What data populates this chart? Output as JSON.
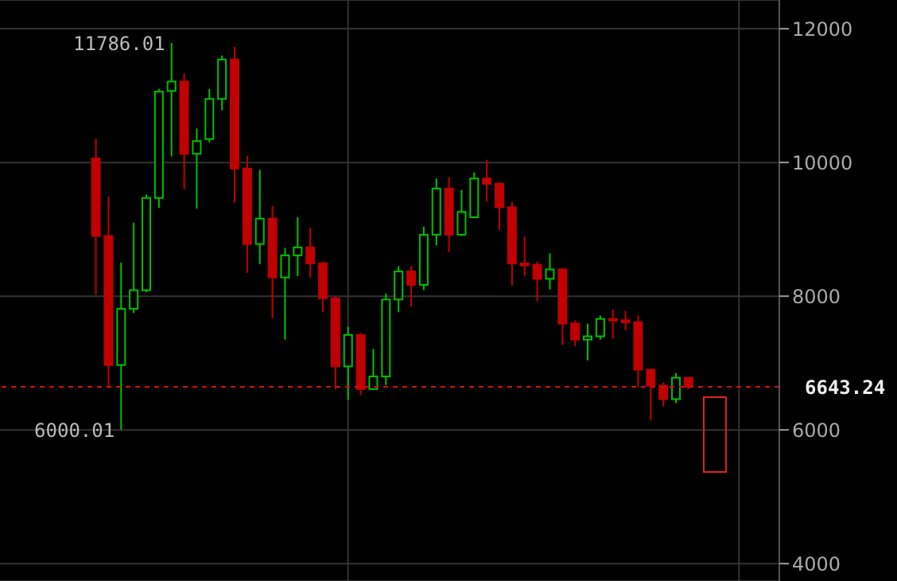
{
  "chart_data": {
    "type": "candlestick",
    "categories": [
      null,
      null,
      null,
      null,
      null,
      null,
      null,
      null,
      null,
      null,
      null,
      null,
      null,
      null,
      null,
      null,
      null,
      null,
      null,
      null,
      null,
      null,
      null,
      null,
      null,
      null,
      null,
      null,
      null,
      null,
      null,
      null,
      null,
      null,
      null,
      null,
      null,
      null,
      null,
      null,
      null,
      null,
      null,
      null,
      null,
      null,
      null,
      null
    ],
    "ohlc": [
      [
        10060,
        10350,
        8020,
        8900
      ],
      [
        8900,
        9490,
        6650,
        6970
      ],
      [
        6970,
        8500,
        6000.01,
        7810
      ],
      [
        7810,
        9100,
        7750,
        8090
      ],
      [
        8090,
        9520,
        8060,
        9470
      ],
      [
        9470,
        11100,
        9320,
        11060
      ],
      [
        11070,
        11786.01,
        10090,
        11210
      ],
      [
        11210,
        11330,
        9600,
        10130
      ],
      [
        10130,
        10510,
        9310,
        10320
      ],
      [
        10350,
        11100,
        10300,
        10950
      ],
      [
        10950,
        11600,
        10780,
        11540
      ],
      [
        11540,
        11730,
        9400,
        9910
      ],
      [
        9910,
        10100,
        8350,
        8780
      ],
      [
        8780,
        9890,
        8480,
        9160
      ],
      [
        9160,
        9350,
        7670,
        8280
      ],
      [
        8280,
        8720,
        7350,
        8610
      ],
      [
        8610,
        9180,
        8300,
        8730
      ],
      [
        8730,
        9020,
        8280,
        8490
      ],
      [
        8490,
        8520,
        7760,
        7970
      ],
      [
        7970,
        7990,
        6610,
        6950
      ],
      [
        6950,
        7540,
        6450,
        7420
      ],
      [
        7420,
        7450,
        6520,
        6610
      ],
      [
        6610,
        7210,
        6610,
        6800
      ],
      [
        6800,
        8040,
        6670,
        7950
      ],
      [
        7950,
        8450,
        7760,
        8370
      ],
      [
        8370,
        8450,
        7850,
        8170
      ],
      [
        8170,
        9040,
        8090,
        8920
      ],
      [
        8920,
        9760,
        8760,
        9610
      ],
      [
        9610,
        9780,
        8660,
        8920
      ],
      [
        8920,
        9590,
        8900,
        9260
      ],
      [
        9180,
        9850,
        9180,
        9760
      ],
      [
        9760,
        10040,
        9420,
        9680
      ],
      [
        9680,
        9710,
        8990,
        9330
      ],
      [
        9330,
        9410,
        8160,
        8490
      ],
      [
        8490,
        8890,
        8300,
        8460
      ],
      [
        8470,
        8520,
        7920,
        8260
      ],
      [
        8260,
        8640,
        8100,
        8400
      ],
      [
        8400,
        8420,
        7270,
        7590
      ],
      [
        7590,
        7640,
        7250,
        7350
      ],
      [
        7350,
        7590,
        7040,
        7400
      ],
      [
        7400,
        7710,
        7350,
        7660
      ],
      [
        7660,
        7800,
        7370,
        7640
      ],
      [
        7640,
        7780,
        7490,
        7610
      ],
      [
        7610,
        7710,
        6640,
        6900
      ],
      [
        6900,
        6900,
        6140,
        6660
      ],
      [
        6660,
        6710,
        6350,
        6460
      ],
      [
        6460,
        6850,
        6400,
        6780
      ],
      [
        6780,
        6790,
        6610,
        6643.24
      ]
    ],
    "colors": [
      "#c00000",
      "#c00000",
      "#00c000",
      "#00c000",
      "#00c000",
      "#00c000",
      "#00c000",
      "#c00000",
      "#00c000",
      "#00c000",
      "#00c000",
      "#c00000",
      "#c00000",
      "#00c000",
      "#c00000",
      "#00c000",
      "#00c000",
      "#c00000",
      "#c00000",
      "#c00000",
      "#00c000",
      "#c00000",
      "#00c000",
      "#00c000",
      "#00c000",
      "#c00000",
      "#00c000",
      "#00c000",
      "#c00000",
      "#00c000",
      "#00c000",
      "#c00000",
      "#c00000",
      "#c00000",
      "#c00000",
      "#c00000",
      "#00c000",
      "#c00000",
      "#c00000",
      "#00c000",
      "#00c000",
      "#c00000",
      "#c00000",
      "#c00000",
      "#c00000",
      "#c00000",
      "#00c000",
      "#c00000"
    ],
    "ylim": [
      3740,
      12430
    ],
    "yticks": [
      4000,
      6000,
      8000,
      10000,
      12000
    ],
    "grid": true,
    "ref_lines": [
      {
        "axis": "y",
        "value": 6643.24,
        "label": "6643.24",
        "color": "#d01010",
        "line_style": "dashed"
      }
    ],
    "annotations": [
      "11786.01",
      "6000.01"
    ]
  }
}
